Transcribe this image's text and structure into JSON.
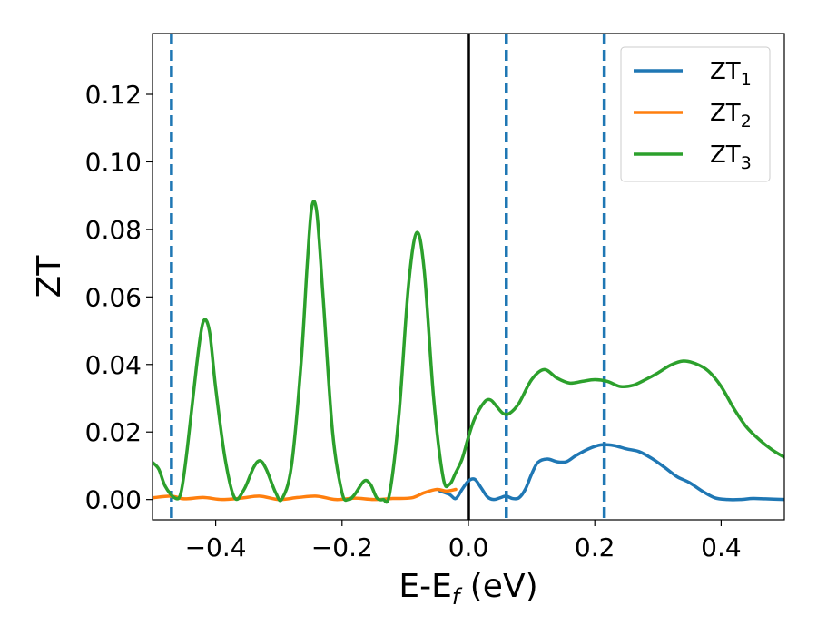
{
  "chart_data": {
    "type": "line",
    "title": "",
    "xlabel": {
      "main": "E-E",
      "sub": "f",
      "unit": " (eV)"
    },
    "ylabel": "ZT",
    "xlim": [
      -0.5,
      0.5
    ],
    "ylim": [
      -0.006,
      0.138
    ],
    "x_ticks": [
      -0.4,
      -0.2,
      0.0,
      0.2,
      0.4
    ],
    "x_tick_labels": [
      "−0.4",
      "−0.2",
      "0.0",
      "0.2",
      "0.4"
    ],
    "y_ticks": [
      0.0,
      0.02,
      0.04,
      0.06,
      0.08,
      0.1,
      0.12
    ],
    "y_tick_labels": [
      "0.00",
      "0.02",
      "0.04",
      "0.06",
      "0.08",
      "0.10",
      "0.12"
    ],
    "grid": false,
    "legend_position": "top-right",
    "vlines": [
      {
        "x": -0.47,
        "style": "dashed",
        "color": "#1f77b4"
      },
      {
        "x": 0.0,
        "style": "solid",
        "color": "#000000"
      },
      {
        "x": 0.06,
        "style": "dashed",
        "color": "#1f77b4"
      },
      {
        "x": 0.215,
        "style": "dashed",
        "color": "#1f77b4"
      }
    ],
    "series": [
      {
        "name": "ZT",
        "sub": "1",
        "color": "#1f77b4",
        "points": [
          [
            -0.045,
            0.0025
          ],
          [
            -0.03,
            0.0015
          ],
          [
            -0.02,
            0.0003
          ],
          [
            -0.01,
            0.003
          ],
          [
            0.0,
            0.0055
          ],
          [
            0.01,
            0.006
          ],
          [
            0.02,
            0.0035
          ],
          [
            0.03,
            0.0008
          ],
          [
            0.04,
            0.0
          ],
          [
            0.05,
            0.0005
          ],
          [
            0.06,
            0.001
          ],
          [
            0.07,
            0.0003
          ],
          [
            0.08,
            0.0005
          ],
          [
            0.09,
            0.003
          ],
          [
            0.1,
            0.0075
          ],
          [
            0.11,
            0.011
          ],
          [
            0.125,
            0.012
          ],
          [
            0.14,
            0.0112
          ],
          [
            0.155,
            0.0112
          ],
          [
            0.17,
            0.013
          ],
          [
            0.19,
            0.015
          ],
          [
            0.21,
            0.0162
          ],
          [
            0.23,
            0.016
          ],
          [
            0.25,
            0.015
          ],
          [
            0.27,
            0.0142
          ],
          [
            0.29,
            0.0122
          ],
          [
            0.31,
            0.0096
          ],
          [
            0.33,
            0.0068
          ],
          [
            0.35,
            0.005
          ],
          [
            0.37,
            0.0025
          ],
          [
            0.39,
            0.0005
          ],
          [
            0.41,
            0.0
          ],
          [
            0.43,
            0.0
          ],
          [
            0.45,
            0.0003
          ],
          [
            0.47,
            0.0002
          ],
          [
            0.5,
            0.0
          ]
        ]
      },
      {
        "name": "ZT",
        "sub": "2",
        "color": "#ff7f0e",
        "points": [
          [
            -0.5,
            0.0005
          ],
          [
            -0.47,
            0.001
          ],
          [
            -0.45,
            0.0002
          ],
          [
            -0.42,
            0.0006
          ],
          [
            -0.39,
            0.0
          ],
          [
            -0.36,
            0.0004
          ],
          [
            -0.33,
            0.001
          ],
          [
            -0.3,
            0.0
          ],
          [
            -0.27,
            0.0006
          ],
          [
            -0.24,
            0.001
          ],
          [
            -0.21,
            0.0
          ],
          [
            -0.18,
            0.0004
          ],
          [
            -0.15,
            0.0
          ],
          [
            -0.12,
            0.0003
          ],
          [
            -0.09,
            0.0005
          ],
          [
            -0.07,
            0.002
          ],
          [
            -0.05,
            0.003
          ],
          [
            -0.035,
            0.0025
          ],
          [
            -0.02,
            0.003
          ]
        ]
      },
      {
        "name": "ZT",
        "sub": "3",
        "color": "#2ca02c",
        "points": [
          [
            -0.5,
            0.011
          ],
          [
            -0.49,
            0.009
          ],
          [
            -0.48,
            0.004
          ],
          [
            -0.465,
            0.0005
          ],
          [
            -0.455,
            0.002
          ],
          [
            -0.445,
            0.015
          ],
          [
            -0.43,
            0.04
          ],
          [
            -0.42,
            0.0525
          ],
          [
            -0.41,
            0.05
          ],
          [
            -0.4,
            0.033
          ],
          [
            -0.385,
            0.012
          ],
          [
            -0.37,
            0.0005
          ],
          [
            -0.355,
            0.003
          ],
          [
            -0.34,
            0.0095
          ],
          [
            -0.33,
            0.0115
          ],
          [
            -0.32,
            0.009
          ],
          [
            -0.305,
            0.002
          ],
          [
            -0.295,
            0.0002
          ],
          [
            -0.28,
            0.01
          ],
          [
            -0.265,
            0.04
          ],
          [
            -0.255,
            0.07
          ],
          [
            -0.248,
            0.0865
          ],
          [
            -0.24,
            0.085
          ],
          [
            -0.23,
            0.06
          ],
          [
            -0.215,
            0.02
          ],
          [
            -0.2,
            0.002
          ],
          [
            -0.19,
            0.0
          ],
          [
            -0.18,
            0.0015
          ],
          [
            -0.165,
            0.0055
          ],
          [
            -0.155,
            0.0045
          ],
          [
            -0.145,
            0.0005
          ],
          [
            -0.135,
            0.0
          ],
          [
            -0.125,
            0.0015
          ],
          [
            -0.11,
            0.025
          ],
          [
            -0.095,
            0.063
          ],
          [
            -0.082,
            0.079
          ],
          [
            -0.07,
            0.068
          ],
          [
            -0.055,
            0.03
          ],
          [
            -0.04,
            0.0065
          ],
          [
            -0.03,
            0.0045
          ],
          [
            -0.02,
            0.008
          ],
          [
            -0.01,
            0.012
          ],
          [
            0.0,
            0.0185
          ],
          [
            0.01,
            0.024
          ],
          [
            0.025,
            0.0288
          ],
          [
            0.035,
            0.0295
          ],
          [
            0.045,
            0.0275
          ],
          [
            0.055,
            0.0255
          ],
          [
            0.065,
            0.0255
          ],
          [
            0.08,
            0.0285
          ],
          [
            0.1,
            0.0355
          ],
          [
            0.12,
            0.0385
          ],
          [
            0.14,
            0.036
          ],
          [
            0.16,
            0.0345
          ],
          [
            0.18,
            0.035
          ],
          [
            0.2,
            0.0355
          ],
          [
            0.22,
            0.035
          ],
          [
            0.24,
            0.0335
          ],
          [
            0.26,
            0.0338
          ],
          [
            0.28,
            0.0355
          ],
          [
            0.3,
            0.0375
          ],
          [
            0.32,
            0.0398
          ],
          [
            0.34,
            0.041
          ],
          [
            0.36,
            0.0402
          ],
          [
            0.38,
            0.038
          ],
          [
            0.4,
            0.0335
          ],
          [
            0.42,
            0.027
          ],
          [
            0.44,
            0.0215
          ],
          [
            0.46,
            0.0178
          ],
          [
            0.48,
            0.0148
          ],
          [
            0.5,
            0.0125
          ]
        ]
      }
    ]
  }
}
